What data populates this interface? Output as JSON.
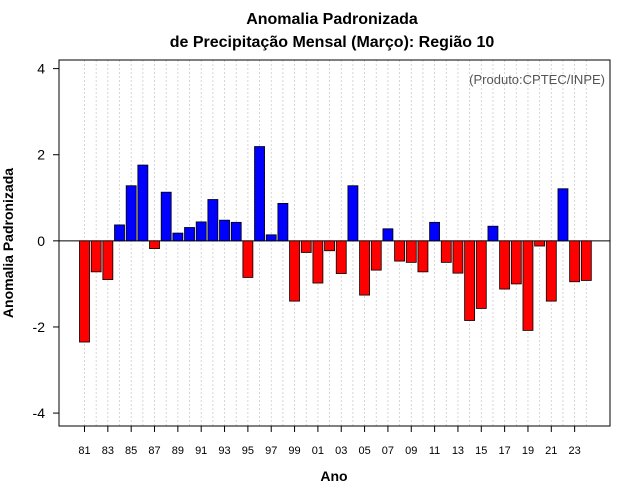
{
  "chart_data": {
    "type": "bar",
    "title": [
      "Anomalia Padronizada",
      "de Precipitação Mensal (Março): Região 10"
    ],
    "xlabel": "Ano",
    "ylabel": "Anomalia Padronizada",
    "annotation": "(Produto:CPTEC/INPE)",
    "ylim": [
      -4.3,
      4.2
    ],
    "yticks": [
      "-4",
      "-2",
      "0",
      "2",
      "4"
    ],
    "grid": "vertical dotted",
    "positive_color": "#0000ff",
    "negative_color": "#ff0000",
    "categories": [
      "81",
      "82",
      "83",
      "84",
      "85",
      "86",
      "87",
      "88",
      "89",
      "90",
      "91",
      "92",
      "93",
      "94",
      "95",
      "96",
      "97",
      "98",
      "99",
      "00",
      "01",
      "02",
      "03",
      "04",
      "05",
      "06",
      "07",
      "08",
      "09",
      "10",
      "11",
      "12",
      "13",
      "14",
      "15",
      "16",
      "17",
      "18",
      "19",
      "20",
      "21",
      "22",
      "23",
      "24"
    ],
    "tick_labels": [
      "81",
      "83",
      "85",
      "87",
      "89",
      "91",
      "93",
      "95",
      "97",
      "99",
      "01",
      "03",
      "05",
      "07",
      "09",
      "11",
      "13",
      "15",
      "17",
      "19",
      "21",
      "23"
    ],
    "values": [
      -2.35,
      -0.72,
      -0.9,
      0.37,
      1.28,
      1.76,
      -0.18,
      1.13,
      0.18,
      0.31,
      0.44,
      0.96,
      0.48,
      0.43,
      -0.85,
      2.19,
      0.14,
      0.87,
      -1.4,
      -0.27,
      -0.98,
      -0.23,
      -0.76,
      1.28,
      -1.26,
      -0.68,
      0.28,
      -0.47,
      -0.5,
      -0.72,
      0.43,
      -0.5,
      -0.75,
      -1.85,
      -1.57,
      0.34,
      -1.12,
      -1.0,
      -2.08,
      -0.12,
      -1.4,
      1.21,
      -0.95,
      -0.92
    ]
  }
}
